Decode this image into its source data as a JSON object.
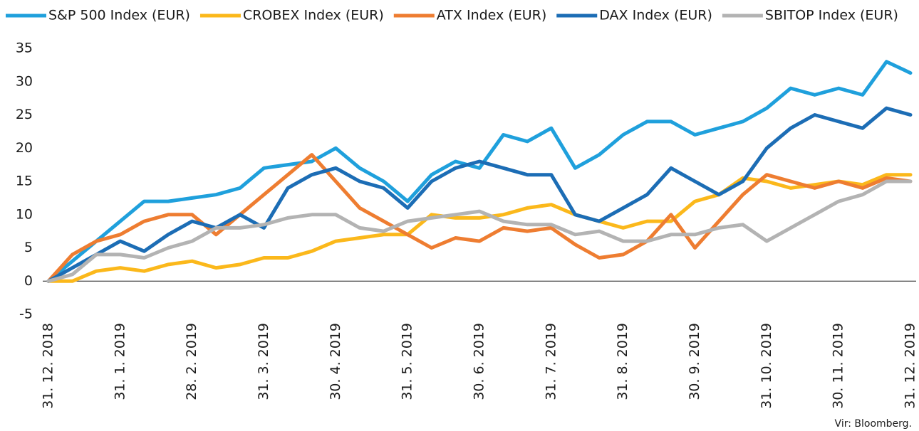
{
  "chart_data": {
    "type": "line",
    "categories": [
      "31. 12. 2018",
      null,
      null,
      "31. 1. 2019",
      null,
      null,
      "28. 2. 2019",
      null,
      null,
      "31. 3. 2019",
      null,
      null,
      "30. 4. 2019",
      null,
      null,
      "31. 5. 2019",
      null,
      null,
      "30. 6. 2019",
      null,
      null,
      "31. 7. 2019",
      null,
      null,
      "31. 8. 2019",
      null,
      null,
      "30. 9. 2019",
      null,
      null,
      "31. 10. 2019",
      null,
      null,
      "30. 11. 2019",
      null,
      null,
      "31. 12. 2019"
    ],
    "series": [
      {
        "name": "S&P 500 Index (EUR)",
        "color": "#1fa0dc",
        "values": [
          0,
          3,
          6,
          9,
          12,
          12,
          12.5,
          13,
          14,
          17,
          17.5,
          18,
          20,
          17,
          15,
          12,
          16,
          18,
          17,
          22,
          21,
          23,
          17,
          19,
          22,
          24,
          24,
          22,
          23,
          24,
          26,
          29,
          28,
          29,
          28,
          33,
          31.3
        ]
      },
      {
        "name": "CROBEX Index (EUR)",
        "color": "#fbb81b",
        "values": [
          0,
          0,
          1.5,
          2,
          1.5,
          2.5,
          3,
          2,
          2.5,
          3.5,
          3.5,
          4.5,
          6,
          6.5,
          7,
          7,
          10,
          9.5,
          9.5,
          10,
          11,
          11.5,
          10,
          9,
          8,
          9,
          9,
          12,
          13,
          15.5,
          15,
          14,
          14.5,
          15,
          14.5,
          16,
          16
        ]
      },
      {
        "name": "ATX Index (EUR)",
        "color": "#ee7d31",
        "values": [
          0,
          4,
          6,
          7,
          9,
          10,
          10,
          7,
          10,
          13,
          16,
          19,
          15,
          11,
          9,
          7,
          5,
          6.5,
          6,
          8,
          7.5,
          8,
          5.5,
          3.5,
          4,
          6,
          10,
          5,
          9,
          13,
          16,
          15,
          14,
          15,
          14,
          15.5,
          15
        ]
      },
      {
        "name": "DAX Index (EUR)",
        "color": "#1c6db5",
        "values": [
          0,
          2,
          4,
          6,
          4.5,
          7,
          9,
          8,
          10,
          8,
          14,
          16,
          17,
          15,
          14,
          11,
          15,
          17,
          18,
          17,
          16,
          16,
          10,
          9,
          11,
          13,
          17,
          15,
          13,
          15,
          20,
          23,
          25,
          24,
          23,
          26,
          25
        ]
      },
      {
        "name": "SBITOP Index (EUR)",
        "color": "#b3b3b3",
        "values": [
          0,
          1,
          4,
          4,
          3.5,
          5,
          6,
          8,
          8,
          8.5,
          9.5,
          10,
          10,
          8,
          7.5,
          9,
          9.5,
          10,
          10.5,
          9,
          8.5,
          8.5,
          7,
          7.5,
          6,
          6,
          7,
          7,
          8,
          8.5,
          6,
          8,
          10,
          12,
          13,
          15,
          15
        ]
      }
    ],
    "ylim": [
      -5,
      35
    ],
    "yticks": [
      -5,
      0,
      5,
      10,
      15,
      20,
      25,
      30,
      35
    ],
    "grid": false,
    "legend": "top",
    "source": "Vir: Bloomberg."
  }
}
